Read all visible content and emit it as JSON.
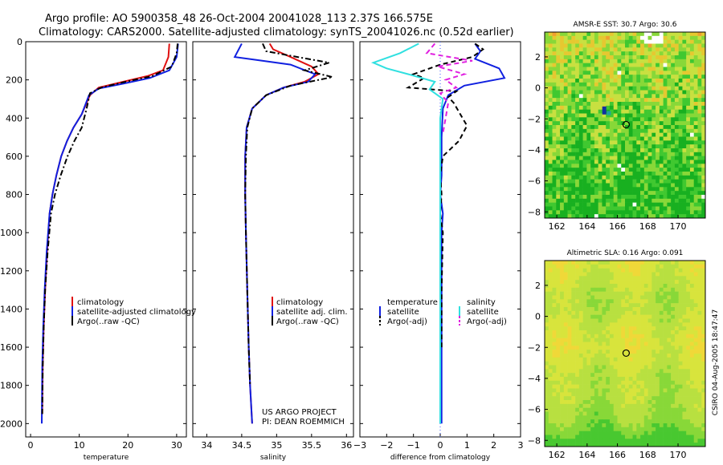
{
  "header": {
    "line1": "Argo profile: AO 5900358_48 26-Oct-2004 20041028_113 2.37S 166.575E",
    "line2": "Climatology: CARS2000. Satellite-adjusted climatology: synTS_20041026.nc (0.52d earlier)"
  },
  "colors": {
    "climatology": "#e01010",
    "satellite": "#1020e0",
    "argo": "#000000",
    "salinity_satellite": "#30e0e0",
    "salinity_argo": "#e020e0"
  },
  "chart_data": [
    {
      "type": "line",
      "xlabel": "temperature",
      "ylabel": "",
      "xlim": [
        -1,
        32
      ],
      "ylim": [
        2070,
        0
      ],
      "xticks": [
        0,
        10,
        20,
        30
      ],
      "yticks": [
        0,
        200,
        400,
        600,
        800,
        1000,
        1200,
        1400,
        1600,
        1800,
        2000
      ],
      "legend": [
        "climatology",
        "satellite-adjusted climatology",
        "Argo(..raw -QC)"
      ],
      "series": [
        {
          "name": "climatology",
          "style": "solid",
          "color": "#e01010",
          "x": [
            28.5,
            28.3,
            27.2,
            24,
            19,
            14,
            12.2,
            10.5,
            8.8,
            7.5,
            6.3,
            5.3,
            4.5,
            3.9,
            3.4,
            3.0,
            2.7,
            2.5,
            2.4
          ],
          "y": [
            10,
            80,
            150,
            180,
            210,
            240,
            280,
            380,
            450,
            520,
            600,
            700,
            800,
            900,
            1100,
            1300,
            1500,
            1700,
            1950
          ]
        },
        {
          "name": "satellite-adjusted climatology",
          "style": "solid",
          "color": "#1020e0",
          "x": [
            30.3,
            30.0,
            28.5,
            24.5,
            19,
            14,
            12.0,
            10.5,
            8.8,
            7.5,
            6.3,
            5.3,
            4.5,
            3.9,
            3.3,
            2.9,
            2.6,
            2.4,
            2.3
          ],
          "y": [
            10,
            80,
            150,
            190,
            220,
            245,
            280,
            380,
            450,
            520,
            600,
            700,
            800,
            900,
            1100,
            1300,
            1500,
            1700,
            2000
          ]
        },
        {
          "name": "Argo(..raw -QC)",
          "style": "dashdot",
          "color": "#000000",
          "x": [
            30.2,
            30.0,
            29.0,
            25,
            19.5,
            14.5,
            12.2,
            11.5,
            10.5,
            9.0,
            7.6,
            6.2,
            5.0,
            4.2,
            3.5,
            3.0,
            2.7,
            2.5,
            2.4
          ],
          "y": [
            10,
            60,
            130,
            180,
            210,
            240,
            270,
            350,
            450,
            520,
            600,
            700,
            800,
            900,
            1100,
            1300,
            1500,
            1700,
            1950
          ]
        }
      ]
    },
    {
      "type": "line",
      "xlabel": "salinity",
      "ylabel": "",
      "xlim": [
        33.8,
        36.1
      ],
      "ylim": [
        2070,
        0
      ],
      "xticks": [
        34,
        34.5,
        35,
        35.5,
        36
      ],
      "legend": [
        "climatology",
        "satellite adj. clim.",
        "Argo(..raw -QC)"
      ],
      "annotation": [
        "US ARGO PROJECT",
        "PI: DEAN ROEMMICH"
      ],
      "series": [
        {
          "name": "climatology",
          "style": "solid",
          "color": "#e01010",
          "x": [
            34.9,
            34.95,
            35.2,
            35.5,
            35.6,
            35.4,
            35.1,
            34.85,
            34.65,
            34.57,
            34.55,
            34.55,
            34.56,
            34.58,
            34.6,
            34.62,
            34.65
          ],
          "y": [
            10,
            40,
            80,
            130,
            170,
            210,
            240,
            280,
            350,
            450,
            600,
            800,
            1000,
            1300,
            1600,
            1800,
            2000
          ]
        },
        {
          "name": "satellite adj. clim.",
          "style": "solid",
          "color": "#1020e0",
          "x": [
            34.5,
            34.4,
            34.7,
            35.2,
            35.55,
            35.45,
            35.1,
            34.85,
            34.65,
            34.57,
            34.55,
            34.55,
            34.56,
            34.58,
            34.6,
            34.62,
            34.65
          ],
          "y": [
            10,
            80,
            95,
            120,
            170,
            210,
            240,
            280,
            350,
            450,
            600,
            800,
            1000,
            1300,
            1600,
            1800,
            2000
          ]
        },
        {
          "name": "Argo(..raw -QC)",
          "style": "dashdot",
          "color": "#000000",
          "x": [
            34.8,
            34.85,
            35.3,
            35.75,
            35.4,
            35.8,
            35.2,
            34.85,
            34.65,
            34.58,
            34.56,
            34.55,
            34.56,
            34.58,
            34.6,
            34.62
          ],
          "y": [
            10,
            50,
            80,
            110,
            150,
            185,
            230,
            280,
            350,
            450,
            600,
            800,
            1000,
            1300,
            1600,
            1800
          ]
        }
      ]
    },
    {
      "type": "line",
      "xlabel": "difference from climatology",
      "ylabel": "",
      "xlim": [
        -3,
        3
      ],
      "ylim": [
        2070,
        0
      ],
      "xticks": [
        -3,
        -2,
        -1,
        0,
        1,
        2,
        3
      ],
      "legend": [
        "temperature",
        "satellite",
        "Argo(-adj)",
        "salinity",
        "satellite",
        "Argo(-adj)"
      ],
      "series": [
        {
          "name": "temperature satellite",
          "style": "solid",
          "color": "#1020e0",
          "x": [
            1.3,
            1.5,
            1.3,
            2.2,
            2.4,
            0.9,
            0.3,
            0.1,
            0.05,
            0.05,
            0.0,
            0.1,
            0.05,
            0.05,
            0.05,
            0.05,
            0.05
          ],
          "y": [
            10,
            50,
            90,
            140,
            190,
            230,
            280,
            350,
            500,
            700,
            800,
            900,
            1000,
            1300,
            1600,
            1800,
            2000
          ]
        },
        {
          "name": "temperature Argo(-adj)",
          "style": "dashed",
          "color": "#000000",
          "x": [
            1.3,
            1.6,
            1.2,
            0.0,
            -1.0,
            -0.6,
            -1.2,
            0.6,
            0.3,
            0.5,
            1.0,
            0.7,
            0.1,
            0.0,
            0.05,
            0.0,
            0.1,
            0.05,
            0.05
          ],
          "y": [
            10,
            40,
            80,
            120,
            170,
            190,
            240,
            260,
            290,
            320,
            440,
            520,
            600,
            700,
            800,
            900,
            1000,
            1300,
            1600
          ]
        },
        {
          "name": "salinity satellite",
          "style": "solid",
          "color": "#30e0e0",
          "x": [
            -0.8,
            -1.5,
            -2.5,
            -2.0,
            -1.2,
            -0.2,
            -0.4,
            0.1,
            0.0,
            0.0,
            0.0,
            0.0,
            0.0,
            0.0
          ],
          "y": [
            10,
            60,
            110,
            140,
            170,
            210,
            250,
            300,
            400,
            600,
            800,
            1200,
            1600,
            2000
          ]
        },
        {
          "name": "salinity Argo(-adj)",
          "style": "dashed",
          "color": "#e020e0",
          "x": [
            -0.2,
            -0.5,
            1.2,
            -0.1,
            0.9,
            0.2,
            0.6,
            0.0,
            0.3,
            0.2,
            0.1
          ],
          "y": [
            10,
            60,
            100,
            130,
            170,
            200,
            240,
            270,
            320,
            400,
            480
          ]
        }
      ]
    },
    {
      "type": "heatmap",
      "title": "AMSR-E SST: 30.7 Argo: 30.6",
      "xlim": [
        161.2,
        171.8
      ],
      "ylim": [
        -8.4,
        3.6
      ],
      "xticks": [
        162,
        164,
        166,
        168,
        170
      ],
      "yticks": [
        2,
        0,
        -2,
        -4,
        -6,
        -8
      ],
      "marker": {
        "x": 166.575,
        "y": -2.37
      }
    },
    {
      "type": "heatmap",
      "title": "Altimetric SLA: 0.16 Argo: 0.091",
      "xlim": [
        161.2,
        171.8
      ],
      "ylim": [
        -8.4,
        3.6
      ],
      "xticks": [
        162,
        164,
        166,
        168,
        170
      ],
      "yticks": [
        2,
        0,
        -2,
        -4,
        -6,
        -8
      ],
      "marker": {
        "x": 166.575,
        "y": -2.37
      }
    }
  ],
  "footer": {
    "credit": "CSIRO 04-Aug-2005 18:47:47"
  }
}
